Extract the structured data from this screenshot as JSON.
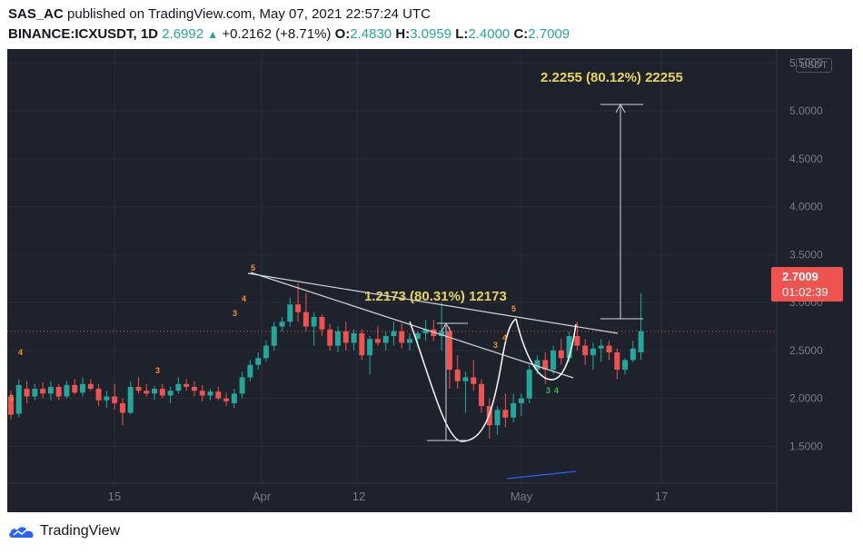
{
  "header": {
    "author": "SAS_AC",
    "published_text": "published on TradingView.com, May 07, 2021 22:57:24 UTC",
    "symbol": "BINANCE:ICXUSDT, 1D",
    "last": "2.6992",
    "arrow": "▲",
    "change": "+0.2162 (+8.71%)",
    "o_label": "O:",
    "o": "2.4830",
    "h_label": "H:",
    "h": "3.0959",
    "l_label": "L:",
    "l": "2.4000",
    "c_label": "C:",
    "c": "2.7009"
  },
  "price_tag": {
    "price": "2.7009",
    "countdown": "01:02:39"
  },
  "currency_badge": "USDT",
  "logo_text": "TradingView",
  "colors": {
    "up": "#26a69a",
    "down": "#ef5350",
    "background": "#1e222d",
    "annotation": "#e8d45a",
    "wave_label": "#f7931a",
    "wave_label_green": "#2ebd40"
  },
  "chart_data": {
    "type": "candlestick",
    "ylim": [
      1.0,
      5.55
    ],
    "y_ticks": [
      "5.5000",
      "5.0000",
      "4.5000",
      "4.0000",
      "3.5000",
      "3.0000",
      "2.5000",
      "2.0000",
      "1.5000"
    ],
    "x_labels": [
      "15",
      "Apr",
      "12",
      "May",
      "17"
    ],
    "measure_labels": [
      "2.2255 (80.12%) 22255",
      "1.2173 (80.31%) 12173"
    ],
    "wave_labels": [
      "3",
      "4",
      "3",
      "3",
      "4",
      "5",
      "5",
      "3",
      "4",
      "3",
      "4"
    ],
    "candles": [
      {
        "date": "2021-03-04",
        "o": 2.02,
        "h": 2.08,
        "l": 1.78,
        "c": 1.83
      },
      {
        "date": "2021-03-05",
        "o": 1.84,
        "h": 2.2,
        "l": 1.8,
        "c": 2.14
      },
      {
        "date": "2021-03-06",
        "o": 2.1,
        "h": 2.18,
        "l": 1.95,
        "c": 2.02
      },
      {
        "date": "2021-03-07",
        "o": 2.02,
        "h": 2.15,
        "l": 1.98,
        "c": 2.1
      },
      {
        "date": "2021-03-08",
        "o": 2.1,
        "h": 2.17,
        "l": 2.0,
        "c": 2.05
      },
      {
        "date": "2021-03-09",
        "o": 2.05,
        "h": 2.18,
        "l": 1.98,
        "c": 2.12
      },
      {
        "date": "2021-03-10",
        "o": 2.12,
        "h": 2.15,
        "l": 1.98,
        "c": 2.02
      },
      {
        "date": "2021-03-11",
        "o": 2.02,
        "h": 2.18,
        "l": 2.0,
        "c": 2.14
      },
      {
        "date": "2021-03-12",
        "o": 2.14,
        "h": 2.2,
        "l": 2.04,
        "c": 2.06
      },
      {
        "date": "2021-03-13",
        "o": 2.06,
        "h": 2.22,
        "l": 2.02,
        "c": 2.15
      },
      {
        "date": "2021-03-14",
        "o": 2.15,
        "h": 2.2,
        "l": 2.08,
        "c": 2.1
      },
      {
        "date": "2021-03-15",
        "o": 2.1,
        "h": 2.15,
        "l": 1.92,
        "c": 1.98
      },
      {
        "date": "2021-03-16",
        "o": 1.98,
        "h": 2.08,
        "l": 1.9,
        "c": 2.02
      },
      {
        "date": "2021-03-17",
        "o": 2.02,
        "h": 2.15,
        "l": 1.88,
        "c": 1.95
      },
      {
        "date": "2021-03-18",
        "o": 1.95,
        "h": 2.0,
        "l": 1.72,
        "c": 1.85
      },
      {
        "date": "2021-03-19",
        "o": 1.85,
        "h": 2.18,
        "l": 1.83,
        "c": 2.12
      },
      {
        "date": "2021-03-20",
        "o": 2.12,
        "h": 2.22,
        "l": 2.05,
        "c": 2.08
      },
      {
        "date": "2021-03-21",
        "o": 2.08,
        "h": 2.15,
        "l": 2.02,
        "c": 2.05
      },
      {
        "date": "2021-03-22",
        "o": 2.05,
        "h": 2.13,
        "l": 1.98,
        "c": 2.1
      },
      {
        "date": "2021-03-23",
        "o": 2.1,
        "h": 2.15,
        "l": 2.0,
        "c": 2.03
      },
      {
        "date": "2021-03-24",
        "o": 2.03,
        "h": 2.12,
        "l": 1.95,
        "c": 2.08
      },
      {
        "date": "2021-03-25",
        "o": 2.08,
        "h": 2.22,
        "l": 2.05,
        "c": 2.15
      },
      {
        "date": "2021-03-26",
        "o": 2.15,
        "h": 2.2,
        "l": 2.08,
        "c": 2.12
      },
      {
        "date": "2021-03-27",
        "o": 2.12,
        "h": 2.18,
        "l": 2.02,
        "c": 2.08
      },
      {
        "date": "2021-03-28",
        "o": 2.08,
        "h": 2.14,
        "l": 1.97,
        "c": 2.03
      },
      {
        "date": "2021-03-29",
        "o": 2.03,
        "h": 2.1,
        "l": 1.98,
        "c": 2.07
      },
      {
        "date": "2021-03-30",
        "o": 2.07,
        "h": 2.12,
        "l": 1.98,
        "c": 2.0
      },
      {
        "date": "2021-03-31",
        "o": 2.0,
        "h": 2.06,
        "l": 1.92,
        "c": 1.97
      },
      {
        "date": "2021-04-01",
        "o": 1.95,
        "h": 2.1,
        "l": 1.9,
        "c": 2.05
      },
      {
        "date": "2021-04-02",
        "o": 2.05,
        "h": 2.28,
        "l": 2.0,
        "c": 2.22
      },
      {
        "date": "2021-04-03",
        "o": 2.22,
        "h": 2.4,
        "l": 2.18,
        "c": 2.35
      },
      {
        "date": "2021-04-04",
        "o": 2.35,
        "h": 2.48,
        "l": 2.3,
        "c": 2.42
      },
      {
        "date": "2021-04-05",
        "o": 2.42,
        "h": 2.6,
        "l": 2.38,
        "c": 2.55
      },
      {
        "date": "2021-04-06",
        "o": 2.55,
        "h": 2.8,
        "l": 2.5,
        "c": 2.75
      },
      {
        "date": "2021-04-07",
        "o": 2.75,
        "h": 2.85,
        "l": 2.7,
        "c": 2.8
      },
      {
        "date": "2021-04-08",
        "o": 2.8,
        "h": 3.05,
        "l": 2.75,
        "c": 2.98
      },
      {
        "date": "2021-04-09",
        "o": 2.98,
        "h": 3.2,
        "l": 2.8,
        "c": 2.9
      },
      {
        "date": "2021-04-10",
        "o": 2.9,
        "h": 3.1,
        "l": 2.7,
        "c": 2.75
      },
      {
        "date": "2021-04-11",
        "o": 2.75,
        "h": 2.9,
        "l": 2.55,
        "c": 2.85
      },
      {
        "date": "2021-04-12",
        "o": 2.85,
        "h": 2.88,
        "l": 2.65,
        "c": 2.72
      },
      {
        "date": "2021-04-13",
        "o": 2.72,
        "h": 2.78,
        "l": 2.5,
        "c": 2.55
      },
      {
        "date": "2021-04-14",
        "o": 2.55,
        "h": 2.75,
        "l": 2.48,
        "c": 2.7
      },
      {
        "date": "2021-04-15",
        "o": 2.7,
        "h": 2.8,
        "l": 2.5,
        "c": 2.58
      },
      {
        "date": "2021-04-16",
        "o": 2.58,
        "h": 2.72,
        "l": 2.5,
        "c": 2.68
      },
      {
        "date": "2021-04-17",
        "o": 2.68,
        "h": 2.72,
        "l": 2.4,
        "c": 2.45
      },
      {
        "date": "2021-04-18",
        "o": 2.45,
        "h": 2.65,
        "l": 2.25,
        "c": 2.62
      },
      {
        "date": "2021-04-19",
        "o": 2.62,
        "h": 2.75,
        "l": 2.55,
        "c": 2.58
      },
      {
        "date": "2021-04-20",
        "o": 2.58,
        "h": 2.7,
        "l": 2.5,
        "c": 2.65
      },
      {
        "date": "2021-04-21",
        "o": 2.65,
        "h": 2.8,
        "l": 2.55,
        "c": 2.7
      },
      {
        "date": "2021-04-22",
        "o": 2.7,
        "h": 2.78,
        "l": 2.52,
        "c": 2.58
      },
      {
        "date": "2021-04-23",
        "o": 2.58,
        "h": 2.68,
        "l": 2.5,
        "c": 2.62
      },
      {
        "date": "2021-04-24",
        "o": 2.62,
        "h": 2.7,
        "l": 2.55,
        "c": 2.68
      },
      {
        "date": "2021-04-25",
        "o": 2.68,
        "h": 2.82,
        "l": 2.6,
        "c": 2.72
      },
      {
        "date": "2021-04-26",
        "o": 2.72,
        "h": 2.82,
        "l": 2.6,
        "c": 2.65
      },
      {
        "date": "2021-04-27",
        "o": 2.65,
        "h": 3.0,
        "l": 2.5,
        "c": 2.7
      },
      {
        "date": "2021-04-28",
        "o": 2.7,
        "h": 2.75,
        "l": 2.1,
        "c": 2.3
      },
      {
        "date": "2021-04-29",
        "o": 2.3,
        "h": 2.45,
        "l": 2.1,
        "c": 2.18
      },
      {
        "date": "2021-04-30",
        "o": 2.18,
        "h": 2.28,
        "l": 1.85,
        "c": 2.22
      },
      {
        "date": "2021-05-01",
        "o": 2.22,
        "h": 2.4,
        "l": 2.08,
        "c": 2.15
      },
      {
        "date": "2021-05-02",
        "o": 2.15,
        "h": 2.2,
        "l": 1.85,
        "c": 1.92
      },
      {
        "date": "2021-05-03",
        "o": 1.92,
        "h": 2.0,
        "l": 1.58,
        "c": 1.72
      },
      {
        "date": "2021-05-04",
        "o": 1.72,
        "h": 1.92,
        "l": 1.62,
        "c": 1.88
      },
      {
        "date": "2021-05-05",
        "o": 1.88,
        "h": 2.05,
        "l": 1.7,
        "c": 1.8
      },
      {
        "date": "2021-05-06",
        "o": 1.8,
        "h": 2.05,
        "l": 1.75,
        "c": 1.95
      },
      {
        "date": "2021-05-07",
        "o": 1.95,
        "h": 2.05,
        "l": 1.82,
        "c": 2.0
      },
      {
        "date": "2021-05-08",
        "o": 2.0,
        "h": 2.35,
        "l": 1.95,
        "c": 2.3
      },
      {
        "date": "2021-05-09",
        "o": 2.3,
        "h": 2.45,
        "l": 2.25,
        "c": 2.4
      },
      {
        "date": "2021-05-10",
        "o": 2.4,
        "h": 2.48,
        "l": 2.15,
        "c": 2.3
      },
      {
        "date": "2021-05-11",
        "o": 2.3,
        "h": 2.55,
        "l": 2.25,
        "c": 2.5
      },
      {
        "date": "2021-05-12",
        "o": 2.5,
        "h": 2.62,
        "l": 2.35,
        "c": 2.42
      },
      {
        "date": "2021-05-13",
        "o": 2.42,
        "h": 2.7,
        "l": 2.38,
        "c": 2.65
      },
      {
        "date": "2021-05-14",
        "o": 2.65,
        "h": 2.8,
        "l": 2.5,
        "c": 2.55
      },
      {
        "date": "2021-05-15",
        "o": 2.55,
        "h": 2.62,
        "l": 2.35,
        "c": 2.45
      },
      {
        "date": "2021-05-16",
        "o": 2.45,
        "h": 2.58,
        "l": 2.3,
        "c": 2.52
      },
      {
        "date": "2021-05-17",
        "o": 2.52,
        "h": 2.62,
        "l": 2.38,
        "c": 2.55
      },
      {
        "date": "2021-05-18",
        "o": 2.55,
        "h": 2.6,
        "l": 2.4,
        "c": 2.48
      },
      {
        "date": "2021-05-19",
        "o": 2.48,
        "h": 2.52,
        "l": 2.2,
        "c": 2.3
      },
      {
        "date": "2021-05-20",
        "o": 2.3,
        "h": 2.42,
        "l": 2.25,
        "c": 2.4
      },
      {
        "date": "2021-05-21",
        "o": 2.4,
        "h": 2.6,
        "l": 2.38,
        "c": 2.52
      },
      {
        "date": "2021-05-22",
        "o": 2.48,
        "h": 3.1,
        "l": 2.4,
        "c": 2.7
      }
    ]
  }
}
